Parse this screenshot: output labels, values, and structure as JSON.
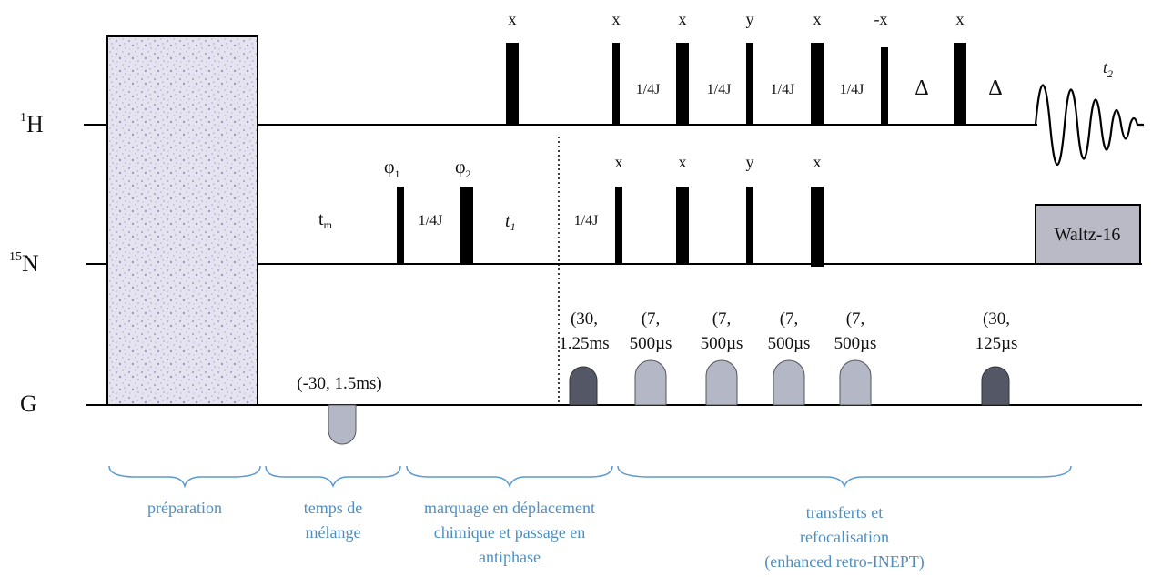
{
  "channels": [
    {
      "main": "H",
      "sup": "1"
    },
    {
      "main": "N",
      "sup": "15"
    },
    {
      "main": "G",
      "sup": ""
    }
  ],
  "h_phases": [
    "x",
    "x",
    "x",
    "y",
    "x",
    "-x",
    "x"
  ],
  "h_delays": [
    "1/4J",
    "1/4J",
    "1/4J",
    "1/4J",
    "Δ",
    "Δ"
  ],
  "t2": "t",
  "t2_sub": "2",
  "n_phase_phi1": {
    "main": "φ",
    "sub": "1"
  },
  "n_phase_phi2": {
    "main": "φ",
    "sub": "2"
  },
  "n_phases": [
    "x",
    "x",
    "y",
    "x"
  ],
  "n_delays": [
    "1/4J",
    "1/4J"
  ],
  "tm": {
    "main": "t",
    "sub": "m"
  },
  "t1": {
    "main": "t",
    "sub": "1"
  },
  "waltz": "Waltz-16",
  "gradients": [
    {
      "line1": "(-30, 1.5ms)",
      "line2": ""
    },
    {
      "line1": "(30,",
      "line2": "1.25ms"
    },
    {
      "line1": "(7,",
      "line2": "500µs"
    },
    {
      "line1": "(7,",
      "line2": "500µs"
    },
    {
      "line1": "(7,",
      "line2": "500µs"
    },
    {
      "line1": "(7,",
      "line2": "500µs"
    },
    {
      "line1": "(30,",
      "line2": "125µs"
    }
  ],
  "sections": [
    {
      "lines": [
        "préparation"
      ]
    },
    {
      "lines": [
        "temps de",
        "mélange"
      ]
    },
    {
      "lines": [
        "marquage en déplacement",
        "chimique et passage en",
        "antiphase"
      ]
    },
    {
      "lines": [
        "transferts et",
        "refocalisation",
        "(enhanced retro-INEPT)"
      ]
    }
  ],
  "colors": {
    "brace": "#5b9ad0",
    "text_blue": "#4f8fc0",
    "grad_light": "#b4b8c6",
    "grad_dark": "#545866",
    "waltz": "#b9bac5",
    "prep": "#dcdcea"
  }
}
